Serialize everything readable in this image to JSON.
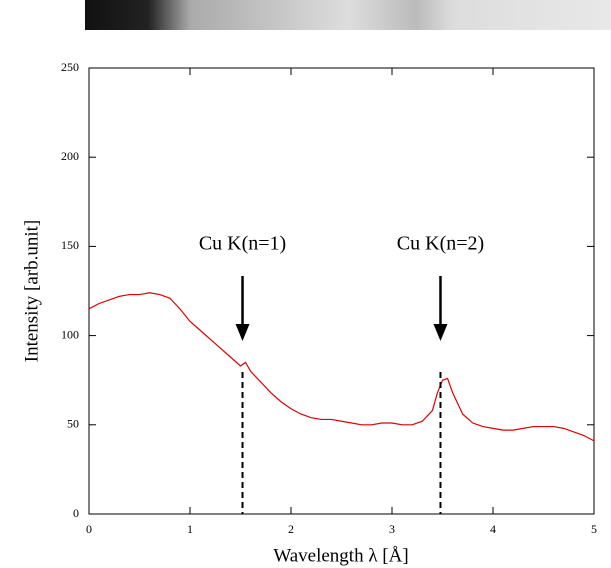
{
  "chart_data": {
    "type": "line",
    "x_label": "Wavelength λ [Å]",
    "y_label": "Intensity [arb.unit]",
    "xlim": [
      0,
      5
    ],
    "xticks": [
      0,
      1,
      2,
      3,
      4,
      5
    ],
    "ylim": [
      0,
      250
    ],
    "yticks": [
      0,
      50,
      100,
      150,
      200,
      250
    ],
    "series": [
      {
        "color": "#e00000",
        "x": [
          0,
          0.1,
          0.2,
          0.3,
          0.4,
          0.5,
          0.6,
          0.7,
          0.8,
          0.9,
          1.0,
          1.1,
          1.2,
          1.3,
          1.4,
          1.5,
          1.55,
          1.6,
          1.7,
          1.8,
          1.9,
          2.0,
          2.1,
          2.2,
          2.3,
          2.4,
          2.5,
          2.6,
          2.7,
          2.8,
          2.9,
          3.0,
          3.1,
          3.2,
          3.3,
          3.4,
          3.45,
          3.5,
          3.55,
          3.6,
          3.7,
          3.8,
          3.9,
          4.0,
          4.1,
          4.2,
          4.3,
          4.4,
          4.5,
          4.6,
          4.7,
          4.8,
          4.9,
          5.0
        ],
        "values": [
          115,
          118,
          120,
          122,
          123,
          123,
          124,
          123,
          121,
          115,
          108,
          103,
          98,
          93,
          88,
          83,
          85,
          80,
          74,
          68,
          63,
          59,
          56,
          54,
          53,
          53,
          52,
          51,
          50,
          50,
          51,
          51,
          50,
          50,
          52,
          58,
          68,
          75,
          76,
          68,
          56,
          51,
          49,
          48,
          47,
          47,
          48,
          49,
          49,
          49,
          48,
          46,
          44,
          41
        ]
      }
    ],
    "annotations": [
      {
        "text": "Cu K(n=1)",
        "x": 1.52
      },
      {
        "text": "Cu K(n=2)",
        "x": 3.48
      }
    ]
  }
}
